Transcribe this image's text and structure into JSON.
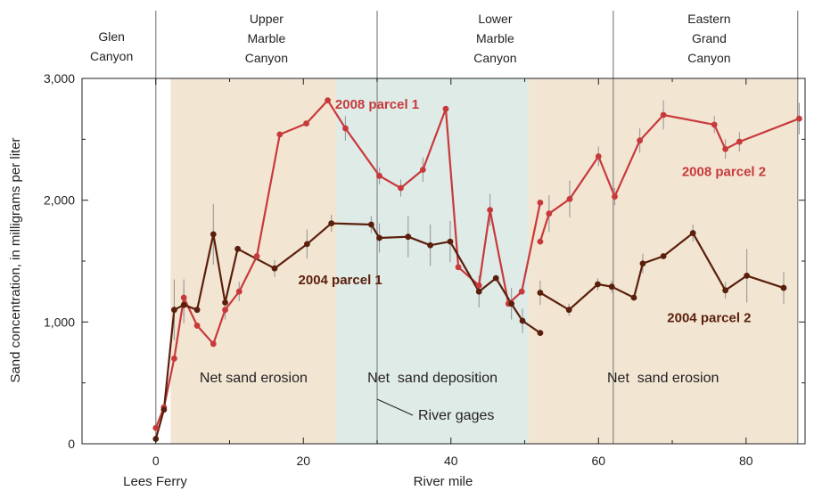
{
  "chart_data": {
    "type": "line",
    "xlabel": "River mile",
    "ylabel": "Sand concentration, in milligrams per liter",
    "xlim": [
      -10,
      88
    ],
    "ylim": [
      0,
      3000
    ],
    "x_ticks": [
      0,
      20,
      40,
      60,
      80
    ],
    "y_ticks": [
      0,
      1000,
      2000,
      3000
    ],
    "y_tick_labels": [
      "0",
      "1,000",
      "2,000",
      "3,000"
    ],
    "x_tick_labels": [
      "0",
      "20",
      "40",
      "60",
      "80"
    ],
    "grid": false,
    "colors": {
      "erosion_band": "#f2e6d3",
      "deposition_band": "#dfebe7",
      "series_2008": "#c8393c",
      "series_2004": "#5a1f0c",
      "error_bar": "#999999",
      "divider": "#8c8c8c"
    },
    "reaches": [
      {
        "lines": [
          "Glen",
          "Canyon"
        ],
        "x_center": -6
      },
      {
        "lines": [
          "Upper",
          "Marble",
          "Canyon"
        ],
        "x_center": 15
      },
      {
        "lines": [
          "Lower",
          "Marble",
          "Canyon"
        ],
        "x_center": 46
      },
      {
        "lines": [
          "Eastern",
          "Grand",
          "Canyon"
        ],
        "x_center": 75
      }
    ],
    "reach_boundaries": [
      0,
      30,
      62,
      87
    ],
    "regions": [
      {
        "label": "Net sand erosion",
        "x_start": 2,
        "x_end": 24.5,
        "kind": "erosion"
      },
      {
        "label": "Net  sand deposition",
        "x_start": 24.5,
        "x_end": 50.5,
        "kind": "deposition"
      },
      {
        "label": "Net  sand erosion",
        "x_start": 50.5,
        "x_end": 87,
        "kind": "erosion"
      }
    ],
    "annotations": {
      "lees_ferry": "Lees Ferry",
      "river_gages": "River gages"
    },
    "series": [
      {
        "name": "2008 parcel 1",
        "color": "#c8393c",
        "points": [
          {
            "x": 0,
            "y": 130
          },
          {
            "x": 1.1,
            "y": 300
          },
          {
            "x": 2.5,
            "y": 700
          },
          {
            "x": 3.8,
            "y": 1200,
            "err": 150
          },
          {
            "x": 5.6,
            "y": 970
          },
          {
            "x": 7.8,
            "y": 820
          },
          {
            "x": 9.4,
            "y": 1100,
            "err": 80
          },
          {
            "x": 11.3,
            "y": 1250,
            "err": 80
          },
          {
            "x": 13.7,
            "y": 1540
          },
          {
            "x": 16.8,
            "y": 2540
          },
          {
            "x": 20.4,
            "y": 2630
          },
          {
            "x": 23.3,
            "y": 2820
          },
          {
            "x": 25.7,
            "y": 2590,
            "err": 100
          },
          {
            "x": 30.3,
            "y": 2200,
            "err": 70
          },
          {
            "x": 33.2,
            "y": 2100,
            "err": 70
          },
          {
            "x": 36.2,
            "y": 2250,
            "err": 100
          },
          {
            "x": 39.3,
            "y": 2750
          },
          {
            "x": 41.0,
            "y": 1450
          },
          {
            "x": 43.8,
            "y": 1300
          },
          {
            "x": 45.3,
            "y": 1920,
            "err": 130
          },
          {
            "x": 47.8,
            "y": 1150
          },
          {
            "x": 49.6,
            "y": 1250
          },
          {
            "x": 52.1,
            "y": 1980
          }
        ]
      },
      {
        "name": "2008 parcel 2",
        "color": "#c8393c",
        "points": [
          {
            "x": 52.1,
            "y": 1660
          },
          {
            "x": 53.3,
            "y": 1890,
            "err": 150
          },
          {
            "x": 56.1,
            "y": 2010,
            "err": 150
          },
          {
            "x": 60.0,
            "y": 2360,
            "err": 80
          },
          {
            "x": 62.2,
            "y": 2030,
            "err": 70
          },
          {
            "x": 65.6,
            "y": 2490,
            "err": 100
          },
          {
            "x": 68.8,
            "y": 2700,
            "err": 120
          },
          {
            "x": 75.7,
            "y": 2620,
            "err": 70
          },
          {
            "x": 77.2,
            "y": 2420,
            "err": 80
          },
          {
            "x": 79.1,
            "y": 2480,
            "err": 80
          },
          {
            "x": 87.2,
            "y": 2670,
            "err": 130
          }
        ]
      },
      {
        "name": "2004 parcel 1",
        "color": "#5a1f0c",
        "points": [
          {
            "x": 0,
            "y": 40
          },
          {
            "x": 1.1,
            "y": 280
          },
          {
            "x": 2.5,
            "y": 1100,
            "err": 250
          },
          {
            "x": 3.8,
            "y": 1140,
            "err": 150
          },
          {
            "x": 5.6,
            "y": 1100
          },
          {
            "x": 7.8,
            "y": 1720,
            "err": 250
          },
          {
            "x": 9.4,
            "y": 1160
          },
          {
            "x": 11.1,
            "y": 1600
          },
          {
            "x": 16.1,
            "y": 1440,
            "err": 70
          },
          {
            "x": 20.5,
            "y": 1640,
            "err": 120
          },
          {
            "x": 23.8,
            "y": 1810,
            "err": 70
          },
          {
            "x": 29.2,
            "y": 1800,
            "err": 70
          },
          {
            "x": 30.3,
            "y": 1690,
            "err": 120
          },
          {
            "x": 34.2,
            "y": 1700,
            "err": 170
          },
          {
            "x": 37.2,
            "y": 1630,
            "err": 170
          },
          {
            "x": 39.9,
            "y": 1660,
            "err": 170
          },
          {
            "x": 43.8,
            "y": 1250,
            "err": 130
          },
          {
            "x": 46.1,
            "y": 1360
          },
          {
            "x": 48.2,
            "y": 1150,
            "err": 130
          },
          {
            "x": 49.7,
            "y": 1010,
            "err": 100
          },
          {
            "x": 52.1,
            "y": 910
          }
        ]
      },
      {
        "name": "2004 parcel 2",
        "color": "#5a1f0c",
        "points": [
          {
            "x": 52.1,
            "y": 1240,
            "err": 100
          },
          {
            "x": 56.0,
            "y": 1100,
            "err": 50
          },
          {
            "x": 59.9,
            "y": 1310,
            "err": 50
          },
          {
            "x": 61.8,
            "y": 1290,
            "err": 50
          },
          {
            "x": 64.8,
            "y": 1200
          },
          {
            "x": 66.0,
            "y": 1480,
            "err": 80
          },
          {
            "x": 68.8,
            "y": 1540
          },
          {
            "x": 72.8,
            "y": 1730,
            "err": 70
          },
          {
            "x": 77.2,
            "y": 1260,
            "err": 70
          },
          {
            "x": 80.1,
            "y": 1380,
            "err": 220
          },
          {
            "x": 85.1,
            "y": 1280,
            "err": 130
          }
        ]
      }
    ],
    "series_labels": [
      {
        "text": "2008 parcel 1",
        "x": 30,
        "y": 2750,
        "color": "#c8393c"
      },
      {
        "text": "2008 parcel 2",
        "x": 77,
        "y": 2200,
        "color": "#c8393c"
      },
      {
        "text": "2004 parcel 1",
        "x": 25,
        "y": 1310,
        "color": "#5a1f0c"
      },
      {
        "text": "2004 parcel 2",
        "x": 75,
        "y": 1000,
        "color": "#5a1f0c"
      }
    ]
  }
}
